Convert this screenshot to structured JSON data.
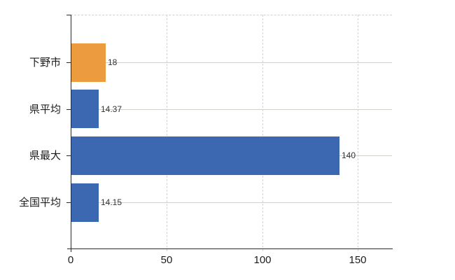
{
  "chart_data": {
    "type": "bar",
    "orientation": "horizontal",
    "title": "",
    "xlabel": "",
    "ylabel": "",
    "categories": [
      "下野市",
      "県平均",
      "県最大",
      "全国平均"
    ],
    "values": [
      18,
      14.37,
      140,
      14.15
    ],
    "value_labels": [
      "18",
      "14.37",
      "140",
      "14.15"
    ],
    "bar_colors": [
      "#EC9B3F",
      "#3B68B0",
      "#3B68B0",
      "#3B68B0"
    ],
    "xlim": [
      0,
      167.8
    ],
    "x_ticks": [
      0,
      50,
      100,
      150
    ],
    "x_tick_labels": [
      "0",
      "50",
      "100",
      "150"
    ],
    "grid": "on",
    "legend": "none"
  },
  "colors": {
    "background": "#ffffff",
    "axis": "#2b2b2b",
    "grid_horizontal": "#ccd2c9",
    "grid_vertical": "#d4d4d8",
    "top_boundary": "#d2d2d6",
    "category_text": "#1c1c1c",
    "value_text": "#333333",
    "bar_orange": "#EC9B3F",
    "bar_blue": "#3B68B0"
  }
}
